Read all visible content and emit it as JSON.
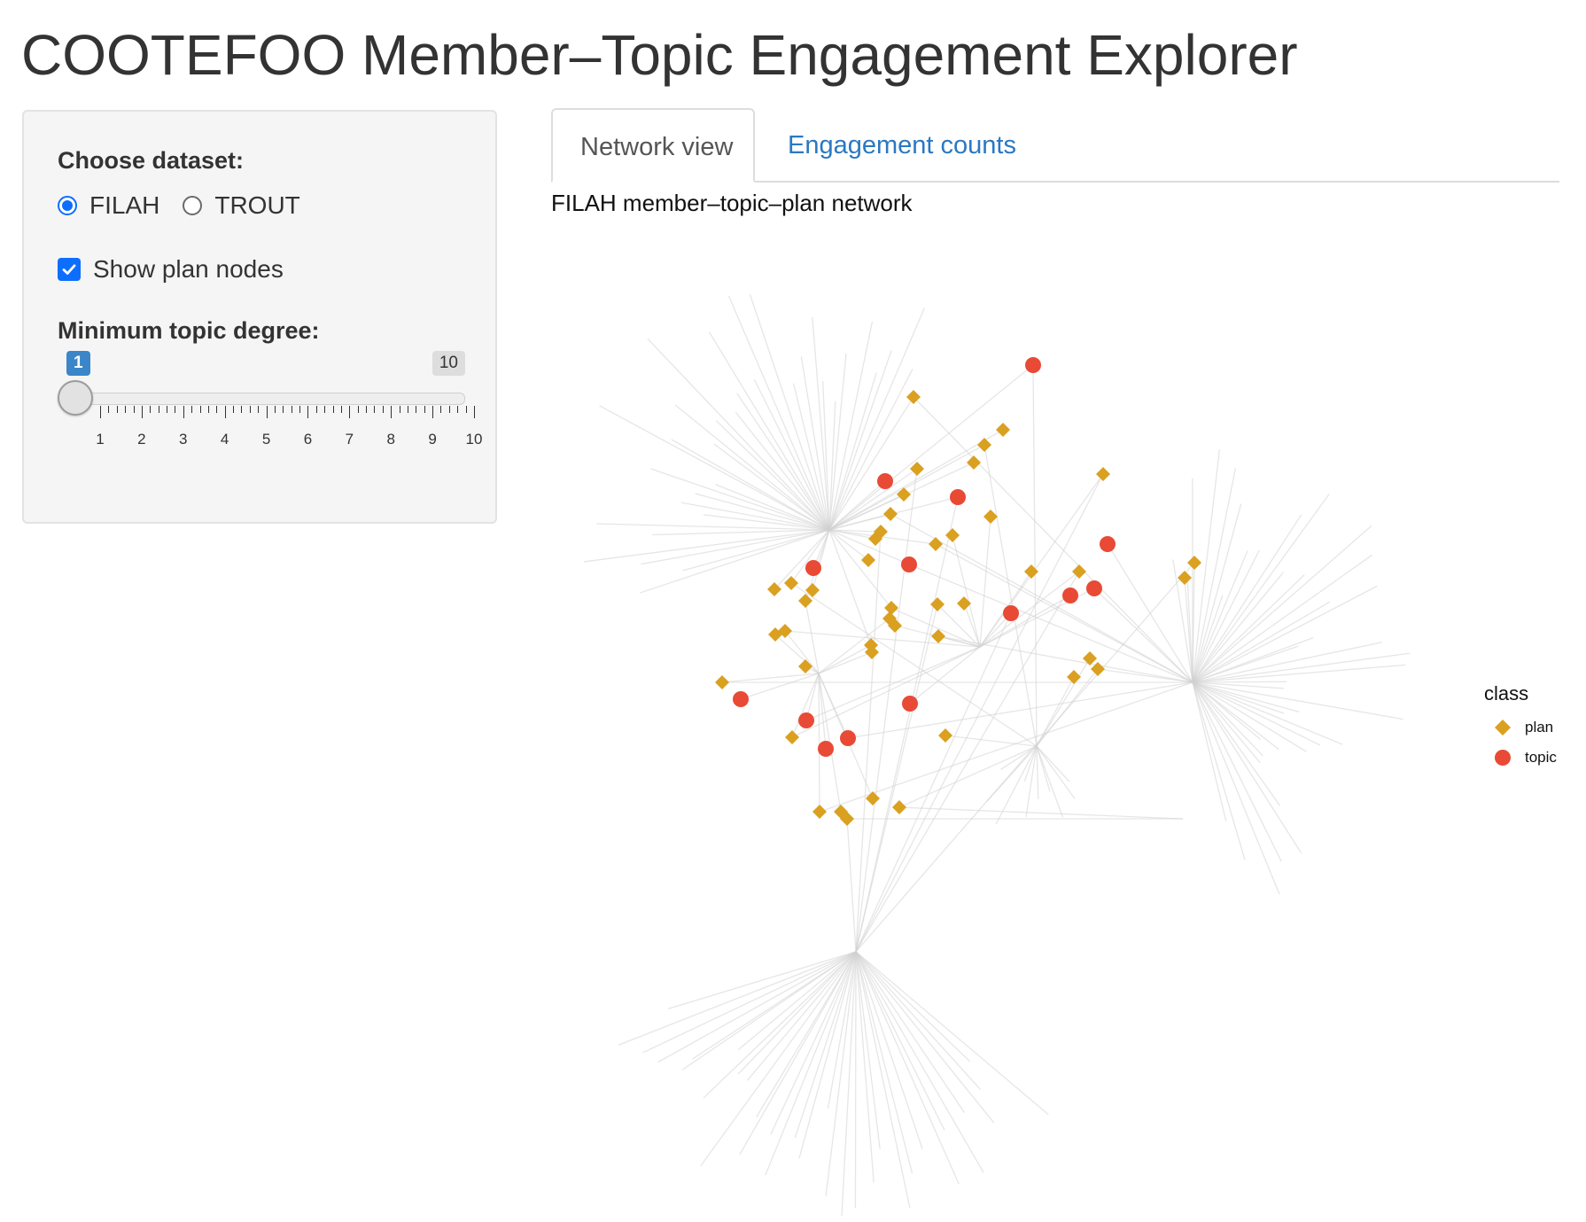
{
  "app": {
    "title": "COOTEFOO Member–Topic Engagement Explorer"
  },
  "sidebar": {
    "dataset_label": "Choose dataset:",
    "dataset_options": [
      "FILAH",
      "TROUT"
    ],
    "dataset_selected": "FILAH",
    "show_plan_label": "Show plan nodes",
    "show_plan_checked": true,
    "degree_label": "Minimum topic degree:",
    "degree_slider": {
      "min": 1,
      "max": 10,
      "from": 1,
      "to": 10,
      "from_label": "1",
      "to_label": "10",
      "tick_labels": [
        "1",
        "2",
        "3",
        "4",
        "5",
        "6",
        "7",
        "8",
        "9",
        "10"
      ]
    }
  },
  "tabs": [
    {
      "label": "Network view",
      "active": true
    },
    {
      "label": "Engagement counts",
      "active": false
    }
  ],
  "plot": {
    "title": "FILAH member–topic–plan network",
    "legend": {
      "title": "class",
      "items": [
        {
          "label": "plan",
          "color": "#daa020",
          "shape": "diamond"
        },
        {
          "label": "topic",
          "color": "#e84a35",
          "shape": "circle"
        }
      ]
    }
  },
  "colors": {
    "plan": "#daa020",
    "topic": "#e84a35",
    "edge": "#d2d2d2",
    "accent_blue": "#0d6efd",
    "tab_link": "#2a78c2"
  }
}
